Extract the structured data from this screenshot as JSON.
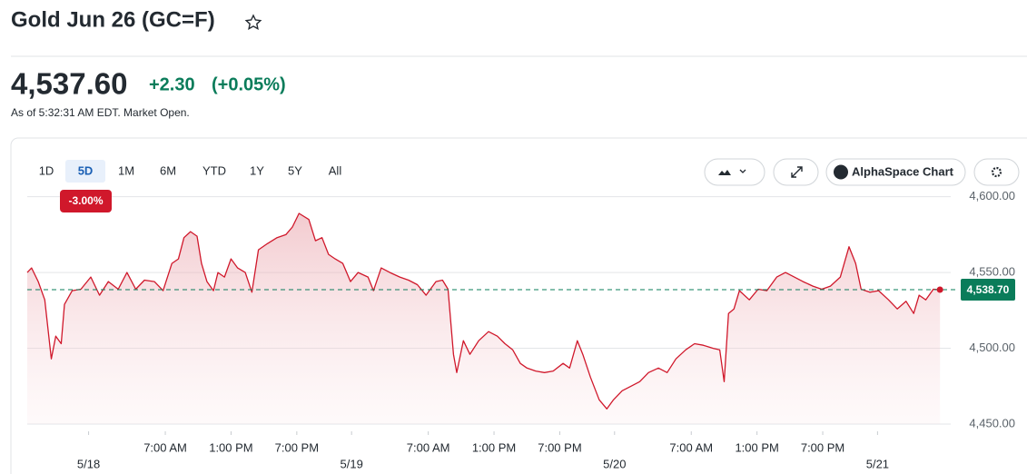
{
  "header": {
    "title": "Gold Jun 26 (GC=F)"
  },
  "quote": {
    "price": "4,537.60",
    "change": "+2.30",
    "change_percent": "(+0.05%)",
    "as_of": "As of 5:32:31 AM EDT. Market Open."
  },
  "toolbar": {
    "ranges": [
      "1D",
      "5D",
      "1M",
      "6M",
      "YTD",
      "1Y",
      "5Y",
      "All"
    ],
    "active_range": "5D",
    "range_change": "-3.00%",
    "chart_button": "AlphaSpace Chart"
  },
  "chart_data": {
    "type": "line",
    "color": "#d0182b",
    "area": true,
    "grid": true,
    "x": [
      -5.6,
      -5.2,
      -4.6,
      -4.0,
      -3.4,
      -3.0,
      -2.5,
      -2.2,
      -1.5,
      -0.7,
      0.2,
      1.0,
      1.8,
      2.7,
      3.5,
      4.3,
      5.1,
      6.0,
      6.8,
      7.6,
      8.2,
      8.7,
      9.3,
      9.9,
      10.3,
      10.8,
      11.4,
      11.8,
      12.4,
      13.0,
      13.6,
      14.3,
      14.9,
      15.5,
      16.3,
      17.2,
      18.0,
      18.6,
      19.2,
      20.1,
      20.7,
      21.3,
      21.9,
      22.5,
      23.2,
      23.9,
      24.6,
      25.5,
      26.0,
      26.7,
      27.5,
      28.4,
      29.2,
      30.0,
      30.8,
      31.7,
      32.3,
      32.8,
      33.3,
      33.6,
      34.2,
      34.8,
      35.6,
      36.5,
      37.3,
      38.0,
      38.7,
      39.4,
      40.0,
      40.8,
      41.6,
      42.4,
      43.3,
      43.9,
      44.6,
      45.1,
      45.8,
      46.6,
      47.3,
      47.9,
      48.7,
      49.5,
      50.3,
      51.1,
      52.0,
      52.8,
      53.6,
      54.5,
      55.3,
      56.1,
      57.0,
      57.6,
      58.0,
      58.4,
      58.9,
      59.4,
      60.3,
      61.1,
      61.9,
      62.8,
      63.6,
      64.4,
      65.2,
      66.1,
      66.9,
      67.7,
      68.6,
      69.4,
      70.0,
      70.5,
      71.3,
      72.1,
      73.0,
      73.8,
      74.6,
      75.3,
      75.8,
      76.4,
      77.1,
      77.7
    ],
    "values": [
      4550,
      4553,
      4544,
      4532,
      4493,
      4508,
      4503,
      4529,
      4538,
      4539,
      4547,
      4535,
      4544,
      4539,
      4550,
      4539,
      4545,
      4544,
      4538,
      4556,
      4559,
      4573,
      4577,
      4574,
      4556,
      4544,
      4538,
      4550,
      4547,
      4559,
      4553,
      4550,
      4537,
      4565,
      4569,
      4573,
      4575,
      4580,
      4589,
      4585,
      4571,
      4573,
      4562,
      4559,
      4556,
      4544,
      4550,
      4547,
      4538,
      4553,
      4550,
      4547,
      4545,
      4542,
      4535,
      4544,
      4545,
      4539,
      4496,
      4484,
      4505,
      4496,
      4505,
      4511,
      4508,
      4503,
      4499,
      4490,
      4487,
      4485,
      4484,
      4485,
      4490,
      4487,
      4505,
      4496,
      4481,
      4466,
      4460,
      4466,
      4472,
      4475,
      4478,
      4484,
      4487,
      4484,
      4493,
      4499,
      4503,
      4502,
      4500,
      4499,
      4478,
      4523,
      4526,
      4538,
      4532,
      4539,
      4538,
      4547,
      4550,
      4547,
      4544,
      4541,
      4539,
      4541,
      4547,
      4567,
      4556,
      4539,
      4537,
      4538,
      4532,
      4526,
      4531,
      4523,
      4535,
      4532,
      4539,
      4538.7
    ],
    "xlim": [
      -5.6,
      78.1
    ],
    "xticks": [
      {
        "value": 0,
        "label": "5/18"
      },
      {
        "value": 7,
        "label": "7:00 AM"
      },
      {
        "value": 13,
        "label": "1:00 PM"
      },
      {
        "value": 19,
        "label": "7:00 PM"
      },
      {
        "value": 24,
        "label": "5/19"
      },
      {
        "value": 31,
        "label": "7:00 AM"
      },
      {
        "value": 37,
        "label": "1:00 PM"
      },
      {
        "value": 43,
        "label": "7:00 PM"
      },
      {
        "value": 48,
        "label": "5/20"
      },
      {
        "value": 55,
        "label": "7:00 AM"
      },
      {
        "value": 61,
        "label": "1:00 PM"
      },
      {
        "value": 67,
        "label": "7:00 PM"
      },
      {
        "value": 72,
        "label": "5/21"
      }
    ],
    "ylim": [
      4450,
      4601
    ],
    "yticks": [
      {
        "value": 4450,
        "label": "4,450.00"
      },
      {
        "value": 4500,
        "label": "4,500.00"
      },
      {
        "value": 4550,
        "label": "4,550.00"
      },
      {
        "value": 4600,
        "label": "4,600.00"
      }
    ],
    "last_price": {
      "value": 4538.7,
      "label": "4,538.70"
    }
  }
}
